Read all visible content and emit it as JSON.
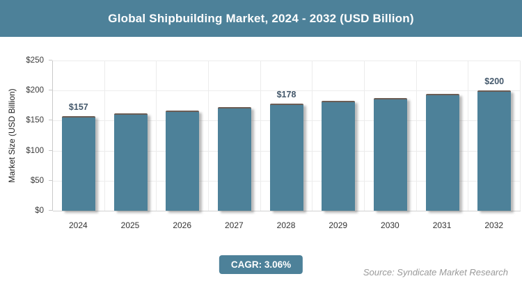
{
  "header": {
    "title": "Global Shipbuilding Market, 2024 - 2032 (USD Billion)"
  },
  "chart_data": {
    "type": "bar",
    "title": "Global Shipbuilding Market, 2024 - 2032 (USD Billion)",
    "categories": [
      "2024",
      "2025",
      "2026",
      "2027",
      "2028",
      "2029",
      "2030",
      "2031",
      "2032"
    ],
    "values": [
      157,
      162,
      167,
      172,
      178,
      183,
      188,
      194,
      200
    ],
    "value_labels": [
      "$157",
      null,
      null,
      null,
      "$178",
      null,
      null,
      null,
      "$200"
    ],
    "xlabel": "",
    "ylabel": "Market Size (USD Billion)",
    "ylim": [
      0,
      250
    ],
    "ytick_labels": [
      "$0",
      "$50",
      "$100",
      "$150",
      "$200",
      "$250"
    ],
    "grid": true,
    "legend_position": "none"
  },
  "footer": {
    "cagr_label": "CAGR: 3.06%",
    "source": "Source: Syndicate Market Research"
  },
  "colors": {
    "accent": "#4d8199",
    "bar": "#4d8199",
    "bar_value_label": "#44586b",
    "gridline": "#ececec",
    "axis_line": "#c9c9c9",
    "tick_text": "#3a3a3a",
    "source_text": "#999999"
  }
}
